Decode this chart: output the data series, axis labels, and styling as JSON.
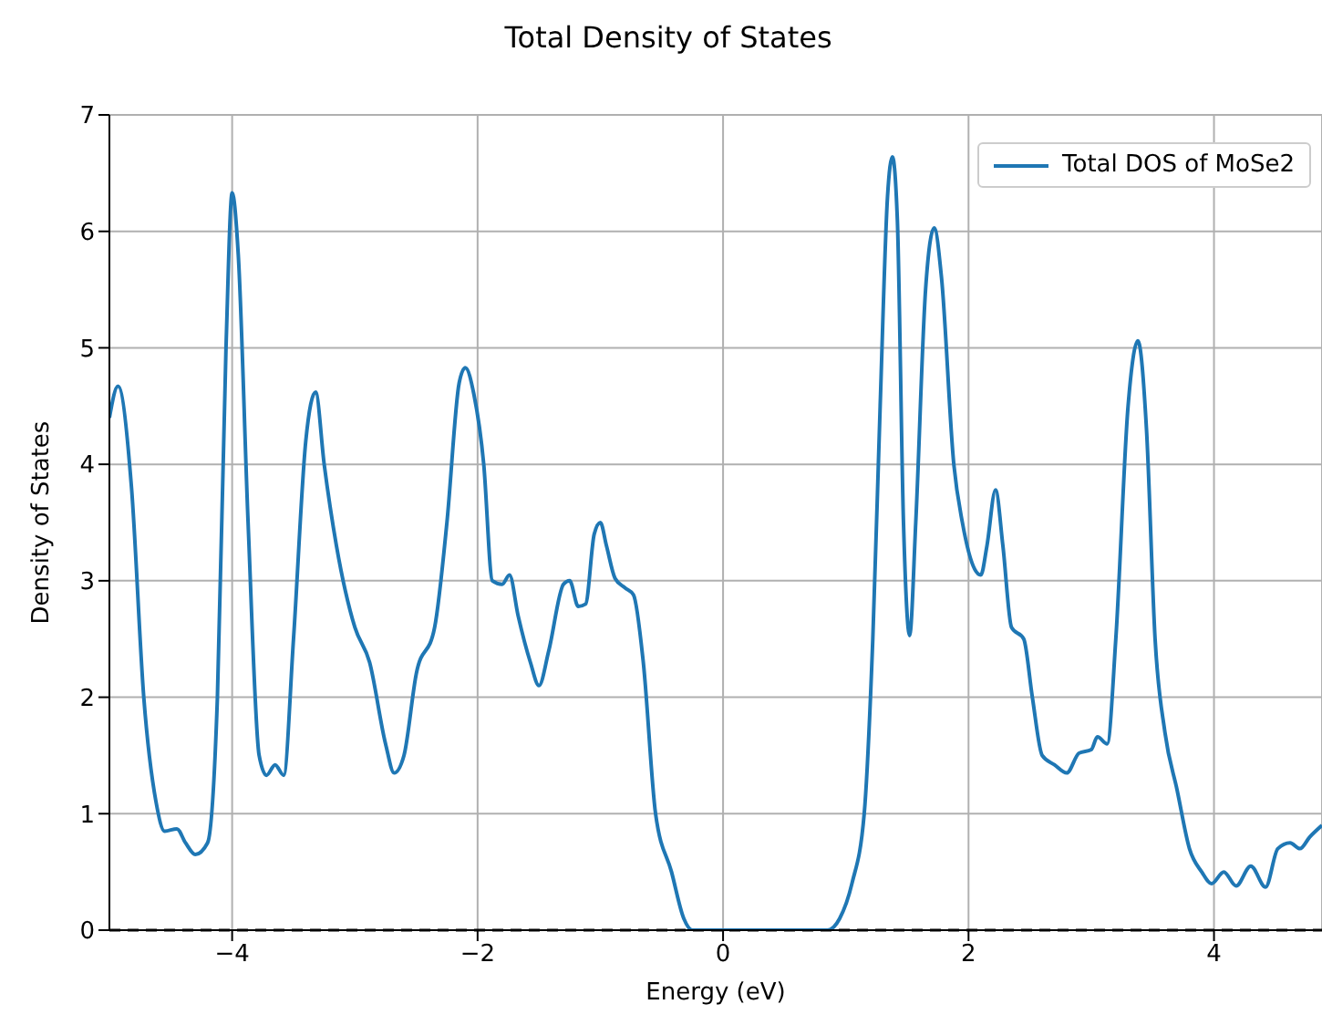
{
  "chart_data": {
    "type": "line",
    "title": "Total Density of States",
    "xlabel": "Energy (eV)",
    "ylabel": "Density of States",
    "xlim": [
      -5,
      4.88
    ],
    "xticks": [
      {
        "value": -4,
        "label": "−4"
      },
      {
        "value": -2,
        "label": "−2"
      },
      0,
      2,
      4
    ],
    "ylim": [
      0,
      7
    ],
    "yticks": [
      0,
      1,
      2,
      3,
      4,
      5,
      6,
      7
    ],
    "grid": true,
    "legend": "top right",
    "ref_lines": [
      {
        "axis": "y",
        "value": 0,
        "color": "#000000",
        "line_style": "dashed"
      }
    ],
    "series": [
      {
        "name": "Total DOS of MoSe2",
        "color": "#1f77b4",
        "x": [
          -5,
          -4.93,
          -4.82,
          -4.72,
          -4.62,
          -4.55,
          -4.45,
          -4.38,
          -4.3,
          -4.2,
          -4.12,
          -4.05,
          -4,
          -3.95,
          -3.87,
          -3.78,
          -3.72,
          -3.65,
          -3.58,
          -3.5,
          -3.4,
          -3.32,
          -3.25,
          -3.15,
          -3,
          -2.88,
          -2.75,
          -2.68,
          -2.6,
          -2.5,
          -2.35,
          -2.25,
          -2.15,
          -2.1,
          -2.03,
          -1.95,
          -1.88,
          -1.8,
          -1.74,
          -1.67,
          -1.57,
          -1.5,
          -1.42,
          -1.3,
          -1.25,
          -1.18,
          -1.12,
          -1.05,
          -1,
          -0.95,
          -0.88,
          -0.8,
          -0.73,
          -0.65,
          -0.55,
          -0.42,
          -0.32,
          -0.25,
          0,
          0.85,
          0.95,
          1.05,
          1.15,
          1.22,
          1.28,
          1.34,
          1.38,
          1.42,
          1.47,
          1.52,
          1.57,
          1.65,
          1.72,
          1.78,
          1.88,
          1.95,
          2.05,
          2.1,
          2.15,
          2.22,
          2.28,
          2.35,
          2.45,
          2.52,
          2.6,
          2.7,
          2.8,
          2.9,
          3,
          3.05,
          3.13,
          3.2,
          3.3,
          3.38,
          3.45,
          3.52,
          3.6,
          3.7,
          3.8,
          3.9,
          3.98,
          4.08,
          4.18,
          4.3,
          4.42,
          4.52,
          4.62,
          4.7,
          4.78,
          4.88
        ],
        "values": [
          4.4,
          4.67,
          3.8,
          2,
          1.1,
          0.85,
          0.87,
          0.75,
          0.65,
          0.75,
          2,
          5,
          6.33,
          5.8,
          3.5,
          1.5,
          1.33,
          1.42,
          1.33,
          2.5,
          4.2,
          4.62,
          4,
          3.3,
          2.6,
          2.3,
          1.6,
          1.35,
          1.5,
          2.2,
          2.6,
          3.5,
          4.7,
          4.83,
          4.6,
          4,
          3,
          2.97,
          3.05,
          2.7,
          2.3,
          2.1,
          2.4,
          2.97,
          3,
          2.78,
          2.8,
          3.4,
          3.5,
          3.3,
          3.02,
          2.94,
          2.88,
          2.3,
          1,
          0.5,
          0.1,
          0,
          0,
          0,
          0.1,
          0.4,
          1,
          2.5,
          4.5,
          6.3,
          6.64,
          6.1,
          3.5,
          2.53,
          3.5,
          5.5,
          6.03,
          5.6,
          4,
          3.5,
          3.1,
          3.05,
          3.3,
          3.78,
          3.3,
          2.6,
          2.5,
          2,
          1.5,
          1.42,
          1.35,
          1.52,
          1.55,
          1.66,
          1.6,
          2.5,
          4.5,
          5.06,
          4.3,
          2.5,
          1.7,
          1.2,
          0.7,
          0.5,
          0.4,
          0.5,
          0.38,
          0.55,
          0.37,
          0.7,
          0.75,
          0.7,
          0.8,
          0.9
        ]
      }
    ]
  }
}
